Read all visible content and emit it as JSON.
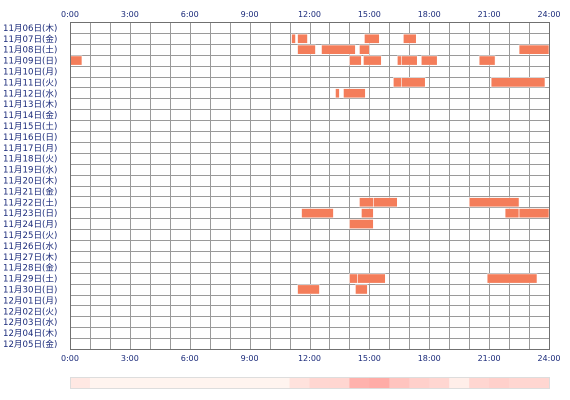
{
  "chart_data": {
    "type": "heatmap",
    "title": "",
    "xlabel": "",
    "ylabel": "",
    "x_ticks": [
      "0:00",
      "3:00",
      "6:00",
      "9:00",
      "12:00",
      "15:00",
      "18:00",
      "21:00",
      "24:00"
    ],
    "x_range": [
      0,
      24
    ],
    "grid": true,
    "bar_color": "#f47d5a",
    "days": [
      "11月06日(木)",
      "11月07日(金)",
      "11月08日(土)",
      "11月09日(日)",
      "11月10日(月)",
      "11月11日(火)",
      "11月12日(水)",
      "11月13日(木)",
      "11月14日(金)",
      "11月15日(土)",
      "11月16日(日)",
      "11月17日(月)",
      "11月18日(火)",
      "11月19日(水)",
      "11月20日(木)",
      "11月21日(金)",
      "11月22日(土)",
      "11月23日(日)",
      "11月24日(月)",
      "11月25日(火)",
      "11月26日(水)",
      "11月27日(木)",
      "11月28日(金)",
      "11月29日(土)",
      "11月30日(日)",
      "12月01日(月)",
      "12月02日(火)",
      "12月03日(水)",
      "12月04日(木)",
      "12月05日(金)"
    ],
    "activity": [
      [],
      [
        [
          11.1,
          11.3
        ],
        [
          11.4,
          11.9
        ],
        [
          14.75,
          15.5
        ],
        [
          16.7,
          17.35
        ]
      ],
      [
        [
          11.4,
          12.3
        ],
        [
          12.6,
          14.3
        ],
        [
          14.5,
          15.0
        ],
        [
          22.5,
          24.0
        ]
      ],
      [
        [
          0.0,
          0.6
        ],
        [
          14.0,
          14.6
        ],
        [
          14.7,
          15.6
        ],
        [
          16.4,
          16.6
        ],
        [
          16.6,
          17.4
        ],
        [
          17.6,
          18.4
        ],
        [
          20.5,
          21.3
        ]
      ],
      [],
      [
        [
          16.2,
          16.6
        ],
        [
          16.6,
          17.8
        ],
        [
          21.1,
          23.8
        ]
      ],
      [
        [
          13.3,
          13.5
        ],
        [
          13.7,
          14.8
        ]
      ],
      [],
      [],
      [],
      [],
      [],
      [],
      [],
      [],
      [],
      [
        [
          14.5,
          15.2
        ],
        [
          15.2,
          16.4
        ],
        [
          20.0,
          22.5
        ]
      ],
      [
        [
          11.6,
          13.2
        ],
        [
          14.6,
          15.2
        ],
        [
          21.8,
          22.5
        ],
        [
          22.5,
          24.0
        ]
      ],
      [
        [
          14.0,
          15.2
        ]
      ],
      [],
      [],
      [],
      [],
      [
        [
          14.0,
          14.4
        ],
        [
          14.4,
          15.8
        ],
        [
          20.9,
          23.4
        ]
      ],
      [
        [
          11.4,
          12.5
        ],
        [
          14.3,
          14.9
        ]
      ],
      [],
      [],
      [],
      [],
      []
    ],
    "aggregate_strip": {
      "comment": "relative activity density per hour-slot, 0 to 1",
      "values": [
        0.15,
        0.05,
        0.05,
        0.05,
        0.05,
        0.05,
        0.05,
        0.05,
        0.05,
        0.05,
        0.05,
        0.2,
        0.3,
        0.3,
        0.6,
        0.65,
        0.45,
        0.35,
        0.3,
        0.1,
        0.3,
        0.35,
        0.3,
        0.3
      ]
    }
  }
}
